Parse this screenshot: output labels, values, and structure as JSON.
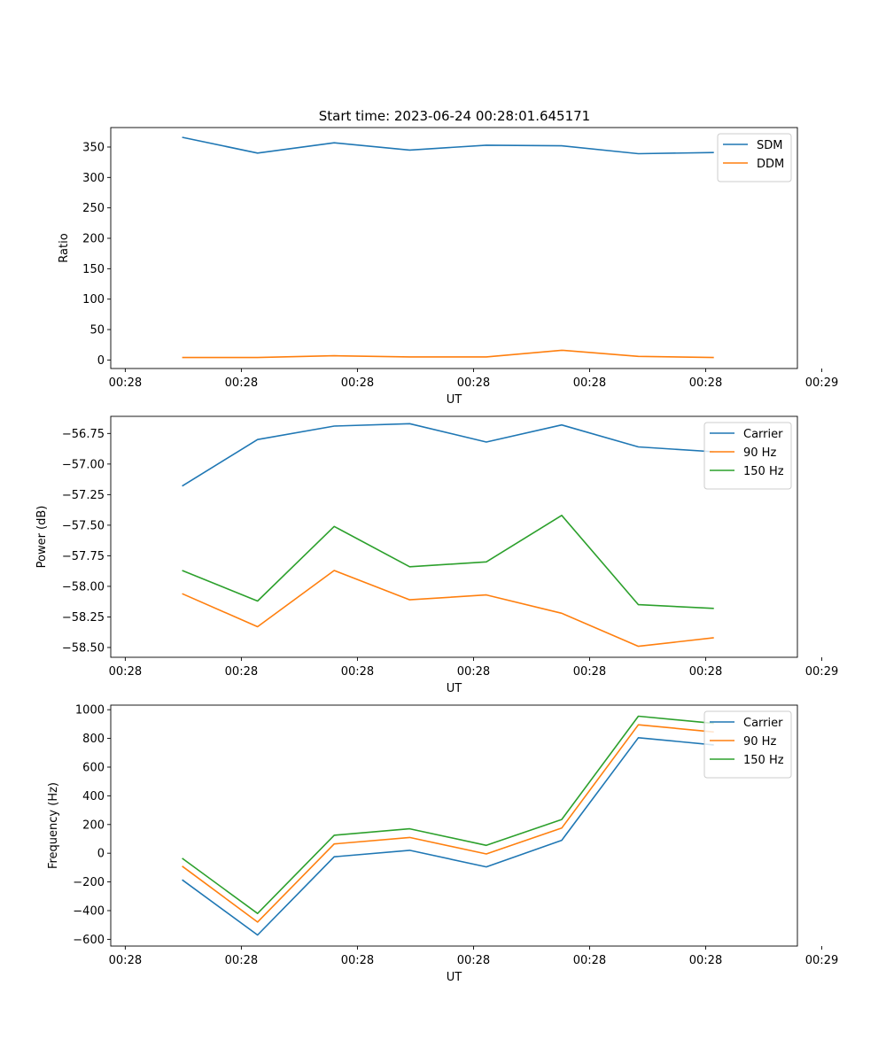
{
  "title": "Start time: 2023-06-24 00:28:01.645171",
  "chart_data": [
    {
      "type": "line",
      "title": "Start time: 2023-06-24 00:28:01.645171",
      "xlabel": "UT",
      "ylabel": "Ratio",
      "ylim": [
        -14,
        382
      ],
      "yticks": [
        0,
        50,
        100,
        150,
        200,
        250,
        300,
        350
      ],
      "ytick_labels": [
        "0",
        "50",
        "100",
        "150",
        "200",
        "250",
        "300",
        "350"
      ],
      "x_unit": "seconds after 00:28:00 UT",
      "xlim": [
        1.25,
        60.4
      ],
      "xticks": [
        2.5,
        12.5,
        22.5,
        32.5,
        42.5,
        52.5,
        62.5
      ],
      "xtick_labels": [
        "00:28",
        "00:28",
        "00:28",
        "00:28",
        "00:28",
        "00:28",
        "00:29"
      ],
      "x": [
        7.4,
        13.9,
        20.5,
        27.0,
        33.6,
        40.1,
        46.7,
        53.2
      ],
      "legend": "top-right",
      "series": [
        {
          "name": "SDM",
          "color": "#1f77b4",
          "values": [
            366,
            340,
            357,
            345,
            353,
            352,
            339,
            341
          ]
        },
        {
          "name": "DDM",
          "color": "#ff7f0e",
          "values": [
            4,
            4,
            7,
            5,
            5,
            16,
            6,
            4
          ]
        }
      ]
    },
    {
      "type": "line",
      "xlabel": "UT",
      "ylabel": "Power (dB)",
      "ylim": [
        -58.58,
        -56.61
      ],
      "yticks": [
        -58.5,
        -58.25,
        -58.0,
        -57.75,
        -57.5,
        -57.25,
        -57.0,
        -56.75
      ],
      "ytick_labels": [
        "−58.50",
        "−58.25",
        "−58.00",
        "−57.75",
        "−57.50",
        "−57.25",
        "−57.00",
        "−56.75"
      ],
      "xlim": [
        1.25,
        60.4
      ],
      "xticks": [
        2.5,
        12.5,
        22.5,
        32.5,
        42.5,
        52.5,
        62.5
      ],
      "xtick_labels": [
        "00:28",
        "00:28",
        "00:28",
        "00:28",
        "00:28",
        "00:28",
        "00:29"
      ],
      "x": [
        7.4,
        13.9,
        20.5,
        27.0,
        33.6,
        40.1,
        46.7,
        53.2
      ],
      "legend": "top-right",
      "series": [
        {
          "name": "Carrier",
          "color": "#1f77b4",
          "values": [
            -57.18,
            -56.8,
            -56.69,
            -56.67,
            -56.82,
            -56.68,
            -56.86,
            -56.9
          ]
        },
        {
          "name": "90 Hz",
          "color": "#ff7f0e",
          "values": [
            -58.06,
            -58.33,
            -57.87,
            -58.11,
            -58.07,
            -58.22,
            -58.49,
            -58.42
          ]
        },
        {
          "name": "150 Hz",
          "color": "#2ca02c",
          "values": [
            -57.87,
            -58.12,
            -57.51,
            -57.84,
            -57.8,
            -57.42,
            -58.15,
            -58.18
          ]
        }
      ]
    },
    {
      "type": "line",
      "xlabel": "UT",
      "ylabel": "Frequency (Hz)",
      "ylim": [
        -647,
        1032
      ],
      "yticks": [
        -600,
        -400,
        -200,
        0,
        200,
        400,
        600,
        800,
        1000
      ],
      "ytick_labels": [
        "−600",
        "−400",
        "−200",
        "0",
        "200",
        "400",
        "600",
        "800",
        "1000"
      ],
      "xlim": [
        1.25,
        60.4
      ],
      "xticks": [
        2.5,
        12.5,
        22.5,
        32.5,
        42.5,
        52.5,
        62.5
      ],
      "xtick_labels": [
        "00:28",
        "00:28",
        "00:28",
        "00:28",
        "00:28",
        "00:28",
        "00:29"
      ],
      "x": [
        7.4,
        13.9,
        20.5,
        27.0,
        33.6,
        40.1,
        46.7,
        53.2
      ],
      "legend": "top-right",
      "series": [
        {
          "name": "Carrier",
          "color": "#1f77b4",
          "values": [
            -185,
            -570,
            -25,
            20,
            -95,
            90,
            805,
            755
          ]
        },
        {
          "name": "90 Hz",
          "color": "#ff7f0e",
          "values": [
            -90,
            -480,
            65,
            110,
            -5,
            175,
            895,
            845
          ]
        },
        {
          "name": "150 Hz",
          "color": "#2ca02c",
          "values": [
            -35,
            -420,
            125,
            170,
            55,
            235,
            955,
            905
          ]
        }
      ]
    }
  ]
}
